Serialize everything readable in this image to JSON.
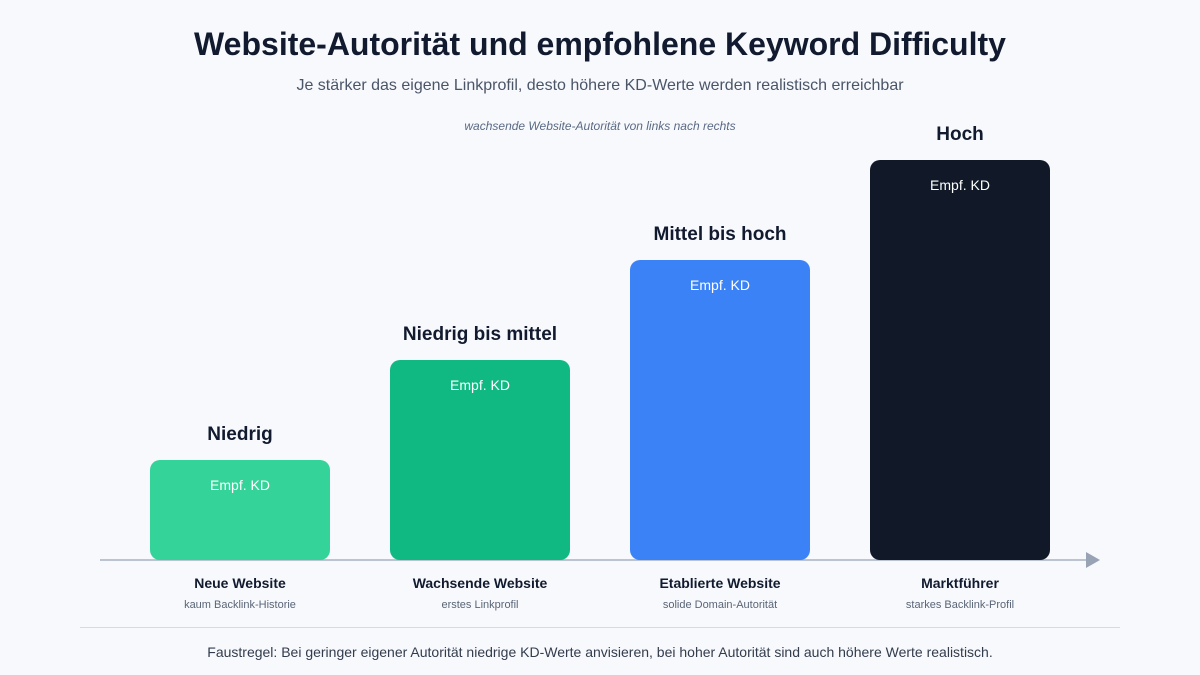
{
  "header": {
    "title": "Website-Autorität und empfohlene Keyword Difficulty",
    "subtitle": "Je stärker das eigene Linkprofil, desto höhere KD-Werte werden realistisch erreichbar",
    "axis_note": "wachsende Website-Autorität von links nach rechts"
  },
  "chart_data": {
    "type": "bar",
    "title": "Website-Autorität und empfohlene Keyword Difficulty",
    "subtitle": "Je stärker das eigene Linkprofil, desto höhere KD-Werte werden realistisch erreichbar",
    "categories": [
      "Neue Website",
      "Wachsende Website",
      "Etablierte Website",
      "Marktführer"
    ],
    "category_descriptions": [
      "kaum Backlink-Historie",
      "erstes Linkprofil",
      "solide Domain-Autorität",
      "starkes Backlink-Profil"
    ],
    "values": [
      1,
      2,
      3,
      4
    ],
    "value_labels": [
      "Niedrig",
      "Niedrig bis mittel",
      "Mittel bis hoch",
      "Hoch"
    ],
    "bar_inner_label": "Empf. KD",
    "colors": [
      "#34d399",
      "#10b981",
      "#3b82f6",
      "#111827"
    ],
    "ylim": [
      0,
      4
    ],
    "grid": false,
    "legend": "none"
  },
  "footer": {
    "note": "Faustregel: Bei geringer eigener Autorität niedrige KD-Werte anvisieren, bei hoher Autorität sind auch höhere Werte realistisch."
  }
}
